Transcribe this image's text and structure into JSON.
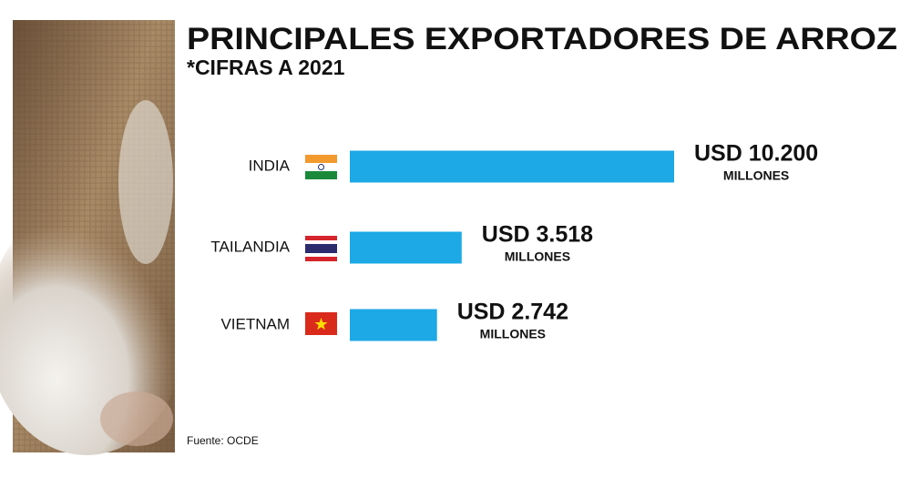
{
  "chart_data": {
    "type": "bar",
    "orientation": "horizontal",
    "title": "PRINCIPALES EXPORTADORES DE ARROZ",
    "subtitle": "*CIFRAS A 2021",
    "categories": [
      "INDIA",
      "TAILANDIA",
      "VIETNAM"
    ],
    "values": [
      10200,
      3518,
      2742
    ],
    "value_labels": [
      "USD 10.200",
      "USD 3.518",
      "USD 2.742"
    ],
    "unit_label": "MILLONES",
    "color": "#1ca9e6",
    "source": "Fuente: OCDE"
  }
}
